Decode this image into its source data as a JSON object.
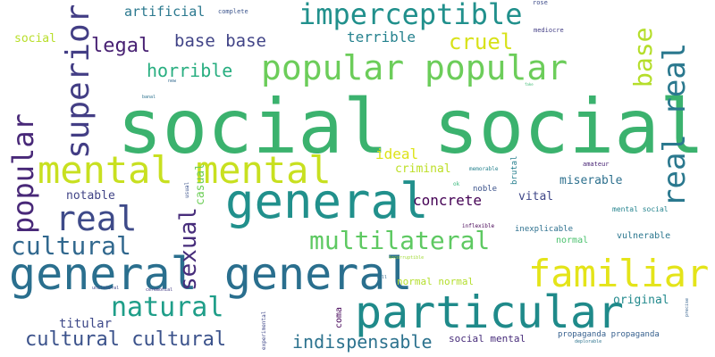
{
  "words": [
    {
      "text": "social social",
      "color": "#3bb26e"
    },
    {
      "text": "particular",
      "color": "#1f8a8a"
    },
    {
      "text": "popular popular",
      "color": "#6ccd5a"
    },
    {
      "text": "familiar",
      "color": "#e4e419"
    },
    {
      "text": "general general",
      "color": "#2a6f8e"
    },
    {
      "text": "general",
      "color": "#21908c"
    },
    {
      "text": "mental mental",
      "color": "#c8e020"
    },
    {
      "text": "imperceptible",
      "color": "#21908c"
    },
    {
      "text": "real real",
      "color": "#2a788e"
    },
    {
      "text": "superior",
      "color": "#433e85"
    },
    {
      "text": "popular",
      "color": "#482878"
    },
    {
      "text": "real",
      "color": "#3e4a89"
    },
    {
      "text": "multilateral",
      "color": "#5ec962"
    },
    {
      "text": "natural",
      "color": "#1f9e89"
    },
    {
      "text": "cultural",
      "color": "#31688e"
    },
    {
      "text": "sexual",
      "color": "#472d7b"
    },
    {
      "text": "cultural cultural",
      "color": "#3b528b"
    },
    {
      "text": "indispensable",
      "color": "#2c728e"
    },
    {
      "text": "base",
      "color": "#b5de2b"
    },
    {
      "text": "cruel",
      "color": "#d8e219"
    },
    {
      "text": "legal",
      "color": "#482173"
    },
    {
      "text": "horrible",
      "color": "#28ae80"
    },
    {
      "text": "base base",
      "color": "#414487"
    },
    {
      "text": "terrible",
      "color": "#26828e"
    },
    {
      "text": "artificial",
      "color": "#2a788e"
    },
    {
      "text": "social",
      "color": "#b8de29"
    },
    {
      "text": "concrete",
      "color": "#440154"
    },
    {
      "text": "ideal",
      "color": "#dde318"
    },
    {
      "text": "criminal",
      "color": "#bddf26"
    },
    {
      "text": "vital",
      "color": "#3f4788"
    },
    {
      "text": "miserable",
      "color": "#2d708e"
    },
    {
      "text": "notable",
      "color": "#414487"
    },
    {
      "text": "casual",
      "color": "#6ece58"
    },
    {
      "text": "titular",
      "color": "#3e4989"
    },
    {
      "text": "original",
      "color": "#238a8d"
    },
    {
      "text": "normal normal",
      "color": "#b4de2c"
    },
    {
      "text": "social mental",
      "color": "#472c7a"
    },
    {
      "text": "propaganda propaganda",
      "color": "#355f8d"
    },
    {
      "text": "coma",
      "color": "#450559"
    },
    {
      "text": "normal",
      "color": "#4ac16d"
    },
    {
      "text": "inexplicable",
      "color": "#2d708e"
    },
    {
      "text": "vulnerable",
      "color": "#2a768e"
    },
    {
      "text": "mental social",
      "color": "#25848e"
    },
    {
      "text": "brutal",
      "color": "#277f8e"
    },
    {
      "text": "noble",
      "color": "#3b528b"
    },
    {
      "text": "complete",
      "color": "#3a538b"
    },
    {
      "text": "rose",
      "color": "#3e4c8a"
    },
    {
      "text": "mediocre",
      "color": "#433e85"
    },
    {
      "text": "amateur",
      "color": "#482475"
    },
    {
      "text": "memorable",
      "color": "#26828e"
    },
    {
      "text": "ok",
      "color": "#35b779"
    },
    {
      "text": "usual",
      "color": "#3b528b"
    },
    {
      "text": "inflexible",
      "color": "#440154"
    },
    {
      "text": "new",
      "color": "#31688e"
    },
    {
      "text": "banal",
      "color": "#2c728e"
    },
    {
      "text": "fake",
      "color": "#3fbc73"
    },
    {
      "text": "full",
      "color": "#2f6c8e"
    },
    {
      "text": "incorruptible",
      "color": "#a2da37"
    },
    {
      "text": "unilateral",
      "color": "#3e4a89"
    },
    {
      "text": "ceremonial",
      "color": "#443b84"
    },
    {
      "text": "experimental",
      "color": "#3f4788"
    },
    {
      "text": "deplorable",
      "color": "#2c738e"
    },
    {
      "text": "precise",
      "color": "#34618d"
    }
  ]
}
